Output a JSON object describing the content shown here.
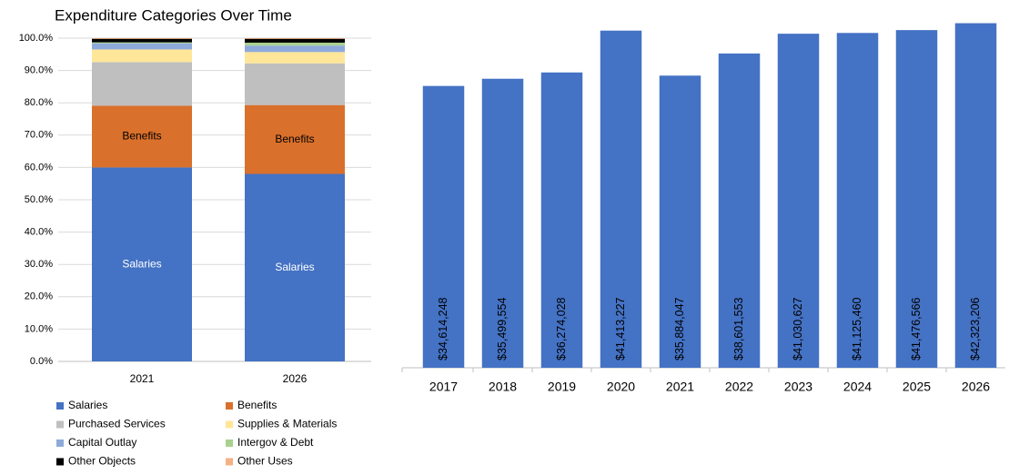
{
  "chart_data": [
    {
      "type": "stacked_bar",
      "title": "Expenditure Categories Over Time",
      "categories": [
        "2021",
        "2026"
      ],
      "series": [
        {
          "name": "Salaries",
          "color": "#4472c4",
          "values": [
            60.0,
            58.0
          ]
        },
        {
          "name": "Benefits",
          "color": "#d9702b",
          "values": [
            19.1,
            21.3
          ]
        },
        {
          "name": "Purchased Services",
          "color": "#bfbfbf",
          "values": [
            13.5,
            12.9
          ]
        },
        {
          "name": "Supplies & Materials",
          "color": "#ffe699",
          "values": [
            3.9,
            3.5
          ]
        },
        {
          "name": "Capital Outlay",
          "color": "#8eaadb",
          "values": [
            1.9,
            2.0
          ]
        },
        {
          "name": "Intergov & Debt",
          "color": "#a9d18e",
          "values": [
            0.3,
            0.9
          ]
        },
        {
          "name": "Other Objects",
          "color": "#000000",
          "values": [
            1.1,
            1.2
          ]
        },
        {
          "name": "Other Uses",
          "color": "#f4b183",
          "values": [
            0.2,
            0.2
          ]
        }
      ],
      "labeled_series": [
        0,
        1
      ],
      "ylim": [
        0,
        100
      ],
      "yticks": [
        {
          "value": 0,
          "label": "0.0%"
        },
        {
          "value": 10,
          "label": "10.0%"
        },
        {
          "value": 20,
          "label": "20.0%"
        },
        {
          "value": 30,
          "label": "30.0%"
        },
        {
          "value": 40,
          "label": "40.0%"
        },
        {
          "value": 50,
          "label": "50.0%"
        },
        {
          "value": 60,
          "label": "60.0%"
        },
        {
          "value": 70,
          "label": "70.0%"
        },
        {
          "value": 80,
          "label": "80.0%"
        },
        {
          "value": 90,
          "label": "90.0%"
        },
        {
          "value": 100,
          "label": "100.0%"
        }
      ],
      "grid": true,
      "legend": "bottom"
    },
    {
      "type": "bar",
      "categories": [
        "2017",
        "2018",
        "2019",
        "2020",
        "2021",
        "2022",
        "2023",
        "2024",
        "2025",
        "2026"
      ],
      "values": [
        34614248,
        35499554,
        36274028,
        41413227,
        35884047,
        38601553,
        41030627,
        41125460,
        41476566,
        42323206
      ],
      "value_labels": [
        "$34,614,248",
        "$35,499,554",
        "$36,274,028",
        "$41,413,227",
        "$35,884,047",
        "$38,601,553",
        "$41,030,627",
        "$41,125,460",
        "$41,476,566",
        "$42,323,206"
      ],
      "color": "#4472c4",
      "ylim": [
        0,
        43500000
      ]
    }
  ]
}
